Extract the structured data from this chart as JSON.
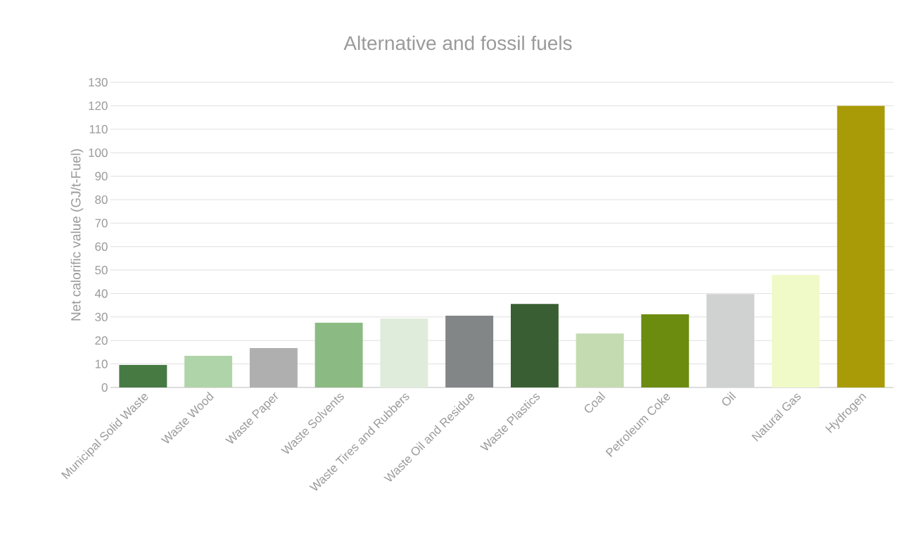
{
  "chart_data": {
    "type": "bar",
    "title": "Alternative and fossil fuels",
    "ylabel": "Net calorific value (GJ/t-Fuel)",
    "categories": [
      "Municipal Solid Waste",
      "Waste Wood",
      "Waste Paper",
      "Waste Solvents",
      "Waste Tires and Rubbers",
      "Waste Oil and Residue",
      "Waste Plastics",
      "Coal",
      "Petroleum Coke",
      "Oil",
      "Natural Gas",
      "Hydrogen"
    ],
    "values": [
      9.6,
      13.5,
      16.8,
      27.6,
      29.4,
      30.6,
      35.6,
      23,
      31.2,
      39.8,
      47.9,
      120
    ],
    "colors": [
      "#477a43",
      "#b0d4a9",
      "#afafb0",
      "#8bbb82",
      "#e0ecdb",
      "#838687",
      "#3a5e33",
      "#c4dbb1",
      "#6b8c0f",
      "#d0d2d1",
      "#f0fac8",
      "#a99b08"
    ],
    "ylim": [
      0,
      130
    ],
    "yticks": [
      0,
      10,
      20,
      30,
      40,
      50,
      60,
      70,
      80,
      90,
      100,
      110,
      120,
      130
    ],
    "grid": "y"
  }
}
